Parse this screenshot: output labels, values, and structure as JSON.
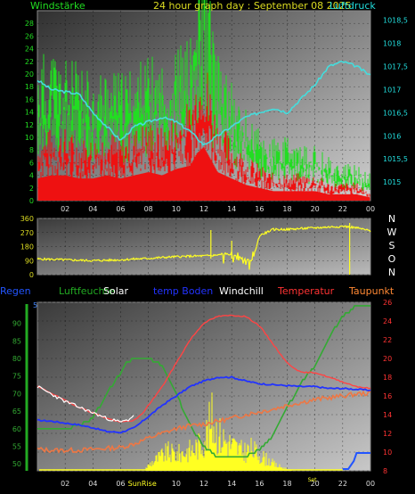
{
  "chart_data": [
    {
      "type": "line",
      "title": "24 hour graph day : September 08 2025",
      "left_label": "Windstärke",
      "right_label": "Luftdruck",
      "x_ticks": [
        "02",
        "04",
        "06",
        "08",
        "10",
        "12",
        "14",
        "16",
        "18",
        "20",
        "22",
        "00"
      ],
      "y_left_ticks": [
        "0",
        "2",
        "4",
        "6",
        "8",
        "10",
        "12",
        "14",
        "16",
        "18",
        "20",
        "22",
        "24",
        "26",
        "28"
      ],
      "y_right_ticks": [
        "1015",
        "1015,5",
        "1016",
        "1016,5",
        "1017",
        "1017,5",
        "1018",
        "1018,5"
      ],
      "ylim_left": [
        0,
        30
      ],
      "ylim_right": [
        1014.6,
        1018.7
      ],
      "series": [
        {
          "key": "gust",
          "color": "#22dd22",
          "x": [
            0,
            1,
            2,
            3,
            4,
            5,
            6,
            7,
            8,
            9,
            10,
            11,
            11.5,
            12,
            12.5,
            13,
            14,
            15,
            16,
            17,
            18,
            19,
            20,
            21,
            22,
            23,
            24
          ],
          "values": [
            16,
            17,
            16,
            15,
            14,
            15,
            14,
            15,
            16,
            15,
            17,
            18,
            24,
            28,
            22,
            16,
            13,
            10,
            8,
            7,
            7,
            6,
            6,
            5,
            4,
            4,
            3
          ]
        },
        {
          "key": "wind",
          "color": "#ee1111",
          "x": [
            0,
            1,
            2,
            3,
            4,
            5,
            6,
            7,
            8,
            9,
            10,
            11,
            11.5,
            12,
            12.5,
            13,
            14,
            15,
            16,
            17,
            18,
            19,
            20,
            21,
            22,
            23,
            24
          ],
          "values": [
            7,
            8,
            8,
            7,
            7,
            8,
            7,
            8,
            9,
            8,
            10,
            11,
            15,
            17,
            13,
            9,
            7,
            5,
            4,
            3,
            3,
            3,
            3,
            2,
            2,
            2,
            1
          ]
        },
        {
          "key": "pressure",
          "color": "#44dddd",
          "axis": "right",
          "x": [
            0,
            1,
            2,
            3,
            3.5,
            4,
            5,
            6,
            7,
            8,
            9,
            10,
            11,
            12,
            13,
            14,
            15,
            16,
            17,
            18,
            19,
            20,
            21,
            22,
            23,
            24
          ],
          "values": [
            1017.2,
            1017.0,
            1016.95,
            1016.9,
            1016.7,
            1016.5,
            1016.2,
            1015.9,
            1016.2,
            1016.3,
            1016.4,
            1016.3,
            1016.1,
            1015.8,
            1016.0,
            1016.2,
            1016.4,
            1016.5,
            1016.6,
            1016.5,
            1016.8,
            1017.1,
            1017.5,
            1017.6,
            1017.5,
            1017.3
          ]
        }
      ]
    },
    {
      "type": "line",
      "y_left_ticks": [
        "0",
        "90",
        "180",
        "270",
        "360"
      ],
      "ylim": [
        0,
        360
      ],
      "direction_labels": [
        "N",
        "W",
        "S",
        "O",
        "N"
      ],
      "series": [
        {
          "key": "direction",
          "color": "#ffff22",
          "x": [
            0,
            1,
            2,
            3,
            4,
            5,
            6,
            7,
            8,
            9,
            10,
            11,
            12,
            13,
            14,
            15,
            15.5,
            16,
            17,
            18,
            19,
            20,
            21,
            22,
            23,
            24
          ],
          "values": [
            100,
            98,
            95,
            92,
            90,
            92,
            95,
            100,
            104,
            110,
            115,
            118,
            120,
            125,
            130,
            95,
            90,
            250,
            290,
            290,
            295,
            300,
            305,
            310,
            300,
            280
          ]
        }
      ]
    },
    {
      "type": "line",
      "legend": [
        "Regen",
        "Luftfeuchte",
        "Solar",
        "temp Boden",
        "Windchill",
        "Temperatur",
        "Taupunkt"
      ],
      "legend_colors": [
        "#2255ff",
        "#22aa22",
        "#ffffff",
        "#2233ff",
        "#ffffff",
        "#ff3333",
        "#ff8833"
      ],
      "x_ticks": [
        "02",
        "04",
        "06",
        "08",
        "10",
        "12",
        "14",
        "16",
        "18",
        "20",
        "22",
        "00"
      ],
      "sun_labels": [
        "Sun",
        "Rise",
        "Set"
      ],
      "y_left_ticks": [
        "50",
        "55",
        "60",
        "65",
        "70",
        "75",
        "80",
        "85",
        "90"
      ],
      "y_right_ticks": [
        "8",
        "10",
        "12",
        "14",
        "16",
        "18",
        "20",
        "22",
        "24",
        "26"
      ],
      "rain_axis_label": "5",
      "ylim_left": [
        48,
        96
      ],
      "ylim_right": [
        8,
        26
      ],
      "series": [
        {
          "key": "humidity",
          "color": "#33aa33",
          "axis": "left",
          "x": [
            0,
            1,
            2,
            3,
            4,
            5,
            6,
            6.5,
            7,
            8,
            9,
            10,
            11,
            12,
            13,
            14,
            15,
            16,
            17,
            18,
            19,
            20,
            21,
            22,
            23,
            24
          ],
          "values": [
            60,
            60,
            60,
            61,
            63,
            70,
            76,
            79,
            80,
            80,
            78,
            70,
            61,
            55,
            52,
            52,
            52,
            54,
            58,
            66,
            73,
            78,
            86,
            92,
            95,
            95
          ]
        },
        {
          "key": "temperature",
          "color": "#ff4444",
          "axis": "right",
          "x": [
            0,
            1,
            2,
            3,
            4,
            5,
            6,
            7,
            7.5,
            8,
            9,
            10,
            11,
            12,
            13,
            14,
            15,
            16,
            17,
            18,
            19,
            20,
            21,
            22,
            23,
            24
          ],
          "values": [
            17,
            16.3,
            15.5,
            14.8,
            14.2,
            13.6,
            13.2,
            13.4,
            14,
            15,
            17,
            19.5,
            22,
            23.8,
            24.5,
            24.6,
            24.5,
            23.5,
            21.5,
            19.5,
            18.5,
            18.5,
            18,
            17.5,
            17.0,
            16.8
          ]
        },
        {
          "key": "windchill",
          "color": "#ffffff",
          "axis": "right",
          "x": [
            0,
            1,
            2,
            3,
            4,
            5,
            6,
            6.5,
            7
          ],
          "values": [
            17,
            16.2,
            15.4,
            14.8,
            14.2,
            13.6,
            13.2,
            13.4,
            14
          ]
        },
        {
          "key": "soil",
          "color": "#2233ff",
          "axis": "right",
          "x": [
            0,
            1,
            2,
            3,
            4,
            5,
            6,
            7,
            8,
            9,
            10,
            11,
            12,
            13,
            14,
            15,
            16,
            17,
            18,
            19,
            20,
            21,
            22,
            23,
            24
          ],
          "values": [
            13.4,
            13.3,
            13.1,
            12.9,
            12.6,
            12.2,
            12.1,
            12.6,
            13.8,
            15,
            16,
            17,
            17.6,
            18,
            18,
            17.6,
            17.3,
            17.2,
            17.1,
            17,
            17,
            16.8,
            16.8,
            16.7,
            16.6
          ]
        },
        {
          "key": "dewpoint",
          "color": "#ee7744",
          "axis": "right",
          "x": [
            0,
            1,
            2,
            3,
            4,
            5,
            6,
            7,
            8,
            9,
            10,
            11,
            12,
            13,
            14,
            15,
            16,
            17,
            18,
            19,
            20,
            21,
            22,
            23,
            24
          ],
          "values": [
            10.3,
            10.2,
            10.2,
            10.2,
            10.3,
            10.4,
            10.5,
            10.9,
            11.5,
            12,
            12.5,
            12.8,
            13,
            13.3,
            13.6,
            14,
            14.3,
            14.6,
            15,
            15.3,
            15.6,
            15.8,
            16,
            16.2,
            16.3
          ]
        },
        {
          "key": "solar",
          "color": "#ffff22",
          "x": [
            7.8,
            8.2,
            8.8,
            9.4,
            10,
            10.6,
            11.2,
            11.8,
            12.2,
            12.6,
            13,
            13.6,
            14.2,
            14.8,
            15.4,
            16,
            16.6,
            17.2,
            17.8,
            18.4
          ],
          "values": [
            0.05,
            0.15,
            0.25,
            0.35,
            0.3,
            0.35,
            0.4,
            0.5,
            0.7,
            0.95,
            0.7,
            0.55,
            0.45,
            0.35,
            0.4,
            0.3,
            0.2,
            0.1,
            0.05,
            0
          ]
        },
        {
          "key": "rain",
          "color": "#2255ff",
          "x": [
            22,
            22.4,
            22.8,
            23,
            24
          ],
          "values": [
            0,
            0,
            1,
            2,
            2
          ]
        }
      ]
    }
  ]
}
